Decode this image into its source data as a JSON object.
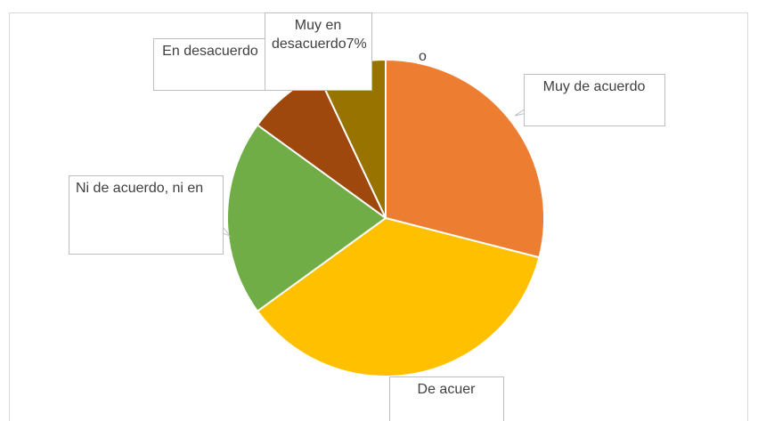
{
  "chart_data": {
    "type": "pie",
    "categories": [
      "Muy de acuerdo",
      "De acuer",
      "Ni de acuerdo, ni en",
      "En desacuerdo",
      "Muy en desacuerdo"
    ],
    "values": [
      29,
      36,
      20,
      8,
      7
    ],
    "value_labels": [
      null,
      null,
      null,
      null,
      "7%"
    ],
    "colors": [
      "#ed7d31",
      "#ffc000",
      "#70ad47",
      "#9e480e",
      "#997300"
    ],
    "annotations": [
      "o"
    ]
  }
}
